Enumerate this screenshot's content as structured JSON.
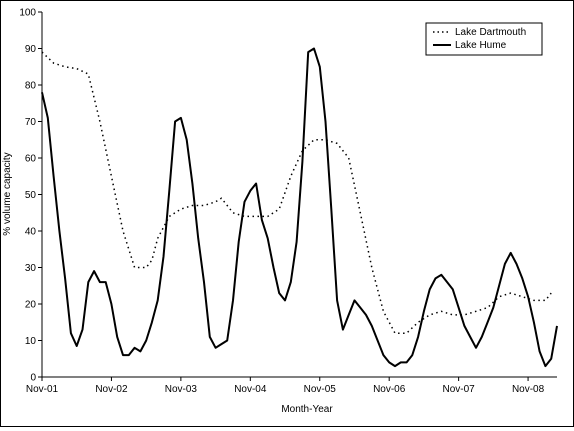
{
  "chart_data": {
    "type": "line",
    "title": "",
    "xlabel": "Month-Year",
    "ylabel": "% volume capacity",
    "ylim": [
      0,
      100
    ],
    "y_ticks": [
      "0",
      "10",
      "20",
      "30",
      "40",
      "50",
      "60",
      "70",
      "80",
      "90",
      "100"
    ],
    "x_ticks": [
      "Nov-01",
      "Nov-02",
      "Nov-03",
      "Nov-04",
      "Nov-05",
      "Nov-06",
      "Nov-07",
      "Nov-08"
    ],
    "x_range_months": [
      0,
      89
    ],
    "grid": false,
    "legend_position": "top-right",
    "series": [
      {
        "name": "Lake Dartmouth",
        "style": "dotted",
        "color": "#000000",
        "points": [
          [
            0,
            89
          ],
          [
            2,
            86
          ],
          [
            4,
            85
          ],
          [
            6,
            84.5
          ],
          [
            8,
            83
          ],
          [
            10,
            70
          ],
          [
            12,
            55
          ],
          [
            14,
            40
          ],
          [
            16,
            30
          ],
          [
            18,
            30
          ],
          [
            19,
            32
          ],
          [
            20,
            38
          ],
          [
            22,
            44
          ],
          [
            24,
            46
          ],
          [
            26,
            47
          ],
          [
            28,
            47
          ],
          [
            30,
            48
          ],
          [
            31,
            49
          ],
          [
            33,
            45
          ],
          [
            35,
            44
          ],
          [
            37,
            44
          ],
          [
            39,
            44
          ],
          [
            41,
            46
          ],
          [
            43,
            55
          ],
          [
            45,
            62
          ],
          [
            47,
            65
          ],
          [
            49,
            65
          ],
          [
            51,
            64
          ],
          [
            53,
            60
          ],
          [
            55,
            45
          ],
          [
            57,
            30
          ],
          [
            59,
            18
          ],
          [
            61,
            12
          ],
          [
            63,
            12
          ],
          [
            65,
            15
          ],
          [
            67,
            17
          ],
          [
            69,
            18
          ],
          [
            71,
            17
          ],
          [
            73,
            17
          ],
          [
            75,
            18
          ],
          [
            77,
            19
          ],
          [
            79,
            22
          ],
          [
            81,
            23
          ],
          [
            83,
            22
          ],
          [
            85,
            21
          ],
          [
            87,
            21
          ],
          [
            88,
            23
          ]
        ]
      },
      {
        "name": "Lake Hume",
        "style": "solid",
        "color": "#000000",
        "points": [
          [
            0,
            78
          ],
          [
            1,
            71
          ],
          [
            2,
            55
          ],
          [
            3,
            40
          ],
          [
            4,
            27
          ],
          [
            5,
            12
          ],
          [
            6,
            8.5
          ],
          [
            7,
            13
          ],
          [
            8,
            26
          ],
          [
            9,
            29
          ],
          [
            10,
            26
          ],
          [
            11,
            26
          ],
          [
            12,
            20
          ],
          [
            13,
            11
          ],
          [
            14,
            6
          ],
          [
            15,
            6
          ],
          [
            16,
            8
          ],
          [
            17,
            7
          ],
          [
            18,
            10
          ],
          [
            19,
            15
          ],
          [
            20,
            21
          ],
          [
            21,
            33
          ],
          [
            22,
            51
          ],
          [
            23,
            70
          ],
          [
            24,
            71
          ],
          [
            25,
            65
          ],
          [
            26,
            53
          ],
          [
            27,
            38
          ],
          [
            28,
            26
          ],
          [
            29,
            11
          ],
          [
            30,
            8
          ],
          [
            31,
            9
          ],
          [
            32,
            10
          ],
          [
            33,
            21
          ],
          [
            34,
            37
          ],
          [
            35,
            48
          ],
          [
            36,
            51
          ],
          [
            37,
            53
          ],
          [
            38,
            43
          ],
          [
            39,
            38
          ],
          [
            40,
            30
          ],
          [
            41,
            23
          ],
          [
            42,
            21
          ],
          [
            43,
            26
          ],
          [
            44,
            37
          ],
          [
            45,
            59
          ],
          [
            46,
            89
          ],
          [
            47,
            90
          ],
          [
            48,
            85
          ],
          [
            49,
            70
          ],
          [
            50,
            46
          ],
          [
            51,
            21
          ],
          [
            52,
            13
          ],
          [
            53,
            17
          ],
          [
            54,
            21
          ],
          [
            55,
            19
          ],
          [
            56,
            17
          ],
          [
            57,
            14
          ],
          [
            58,
            10
          ],
          [
            59,
            6
          ],
          [
            60,
            4
          ],
          [
            61,
            3
          ],
          [
            62,
            4
          ],
          [
            63,
            4
          ],
          [
            64,
            6
          ],
          [
            65,
            11
          ],
          [
            66,
            18
          ],
          [
            67,
            24
          ],
          [
            68,
            27
          ],
          [
            69,
            28
          ],
          [
            70,
            26
          ],
          [
            71,
            24
          ],
          [
            72,
            19
          ],
          [
            73,
            14
          ],
          [
            74,
            11
          ],
          [
            75,
            8
          ],
          [
            76,
            11
          ],
          [
            77,
            15
          ],
          [
            78,
            19
          ],
          [
            79,
            25
          ],
          [
            80,
            31
          ],
          [
            81,
            34
          ],
          [
            82,
            31
          ],
          [
            83,
            27
          ],
          [
            84,
            22
          ],
          [
            85,
            15
          ],
          [
            86,
            7
          ],
          [
            87,
            3
          ],
          [
            88,
            5
          ],
          [
            89,
            14
          ]
        ]
      }
    ]
  }
}
